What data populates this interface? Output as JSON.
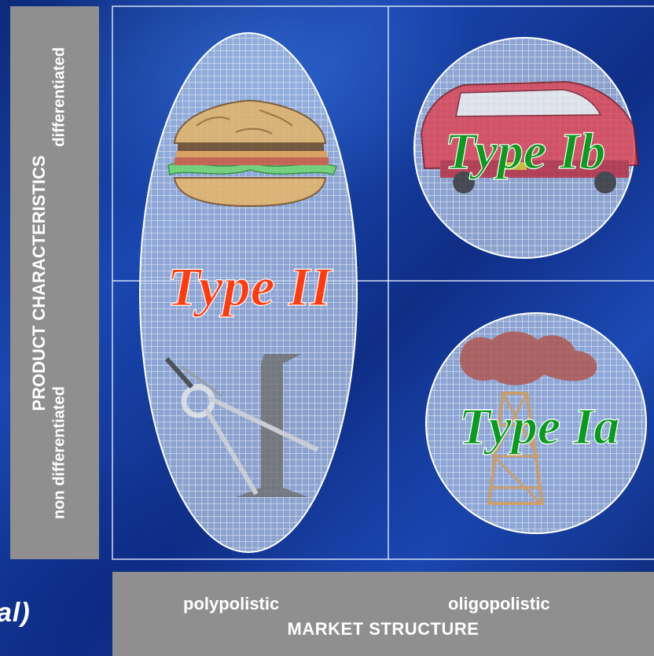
{
  "y_axis": {
    "title": "PRODUCT CHARACTERISTICS",
    "low_label": "non differentiated",
    "high_label": "differentiated"
  },
  "x_axis": {
    "title": "MARKET STRUCTURE",
    "low_label": "polypolistic",
    "high_label": "oligopolistic"
  },
  "cropped_label": "al)",
  "regions": {
    "type_ii": {
      "label": "Type II",
      "color": "#ff3b10"
    },
    "type_ib": {
      "label": "Type Ib",
      "color": "#0a9a1e"
    },
    "type_ia": {
      "label": "Type Ia",
      "color": "#0a9a1e"
    }
  },
  "icons": {
    "hamburger": "hamburger-icon",
    "compass": "compass-icon",
    "car": "car-icon",
    "oil_rig": "oil-rig-icon"
  },
  "colors": {
    "panel_gray": "#8f8f8f",
    "grid_line": "#cfe0ff",
    "shape_fill": "#cfdcf0"
  }
}
